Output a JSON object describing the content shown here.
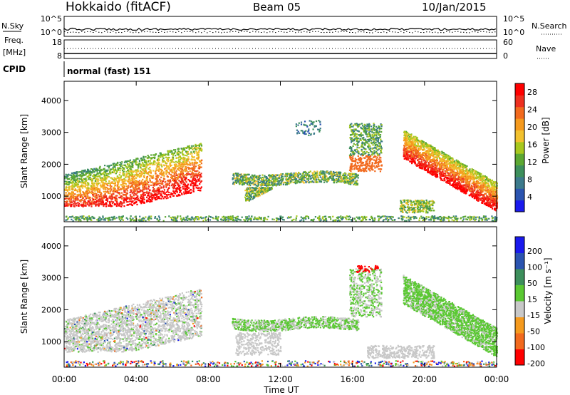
{
  "header": {
    "station": "Hokkaido (fitACF)",
    "beam": "Beam 05",
    "date": "10/Jan/2015"
  },
  "top_panels": {
    "nsky": {
      "label_left": "N.Sky",
      "ticks_left": [
        "10^5",
        "10^0"
      ],
      "label_right": "N.Search",
      "ticks_right": [
        "10^5",
        "10^0"
      ]
    },
    "freq": {
      "label_left_1": "Freq.",
      "label_left_2": "[MHz]",
      "ticks_left": [
        "18",
        "8"
      ],
      "label_right": "Nave",
      "ticks_right": [
        "60",
        "0"
      ]
    },
    "cpid": {
      "label": "CPID",
      "value": "normal (fast) 151"
    }
  },
  "colors": {
    "power": [
      "#1a1aee",
      "#2b54b0",
      "#3c7a8c",
      "#3d8f5c",
      "#5ca832",
      "#a8c81e",
      "#f2c12e",
      "#f59a1e",
      "#f26a1e",
      "#ee3020",
      "#ff0000"
    ],
    "velocity": [
      "#ff0000",
      "#f26a1e",
      "#f59a1e",
      "#c8c8c8",
      "#5ac832",
      "#3d8f5c",
      "#2b54b0",
      "#1a1aee"
    ]
  },
  "chart_data": [
    {
      "type": "heatmap",
      "title": "Power",
      "xlabel": "Time UT",
      "ylabel": "Slant Range [km]",
      "x_ticks": [
        "00:00",
        "04:00",
        "08:00",
        "12:00",
        "16:00",
        "20:00",
        "00:00"
      ],
      "y_ticks": [
        "1000",
        "2000",
        "3000",
        "4000"
      ],
      "ylim": [
        200,
        4600
      ],
      "colorbar": {
        "label": "Power [dB]",
        "ticks": [
          "4",
          "8",
          "12",
          "16",
          "20",
          "24",
          "28"
        ]
      },
      "regions": [
        {
          "t0": 0.0,
          "t1": 7.5,
          "r0": 700,
          "r1": 2600,
          "level": "high"
        },
        {
          "t0": 10.0,
          "t1": 16.5,
          "r0": 1300,
          "r1": 1800,
          "level": "medium"
        },
        {
          "t0": 16.0,
          "t1": 17.5,
          "r0": 1800,
          "r1": 3300,
          "level": "high"
        },
        {
          "t0": 19.0,
          "t1": 24.0,
          "r0": 800,
          "r1": 3000,
          "level": "high"
        }
      ]
    },
    {
      "type": "heatmap",
      "title": "Velocity",
      "xlabel": "Time UT",
      "ylabel": "Slant Range [km]",
      "x_ticks": [
        "00:00",
        "04:00",
        "08:00",
        "12:00",
        "16:00",
        "20:00",
        "00:00"
      ],
      "y_ticks": [
        "1000",
        "2000",
        "3000",
        "4000"
      ],
      "ylim": [
        200,
        4600
      ],
      "colorbar": {
        "label": "Velocity [m s⁻¹]",
        "ticks": [
          "200",
          "100",
          "50",
          "15",
          "-15",
          "-50",
          "-100",
          "-200"
        ]
      }
    }
  ]
}
